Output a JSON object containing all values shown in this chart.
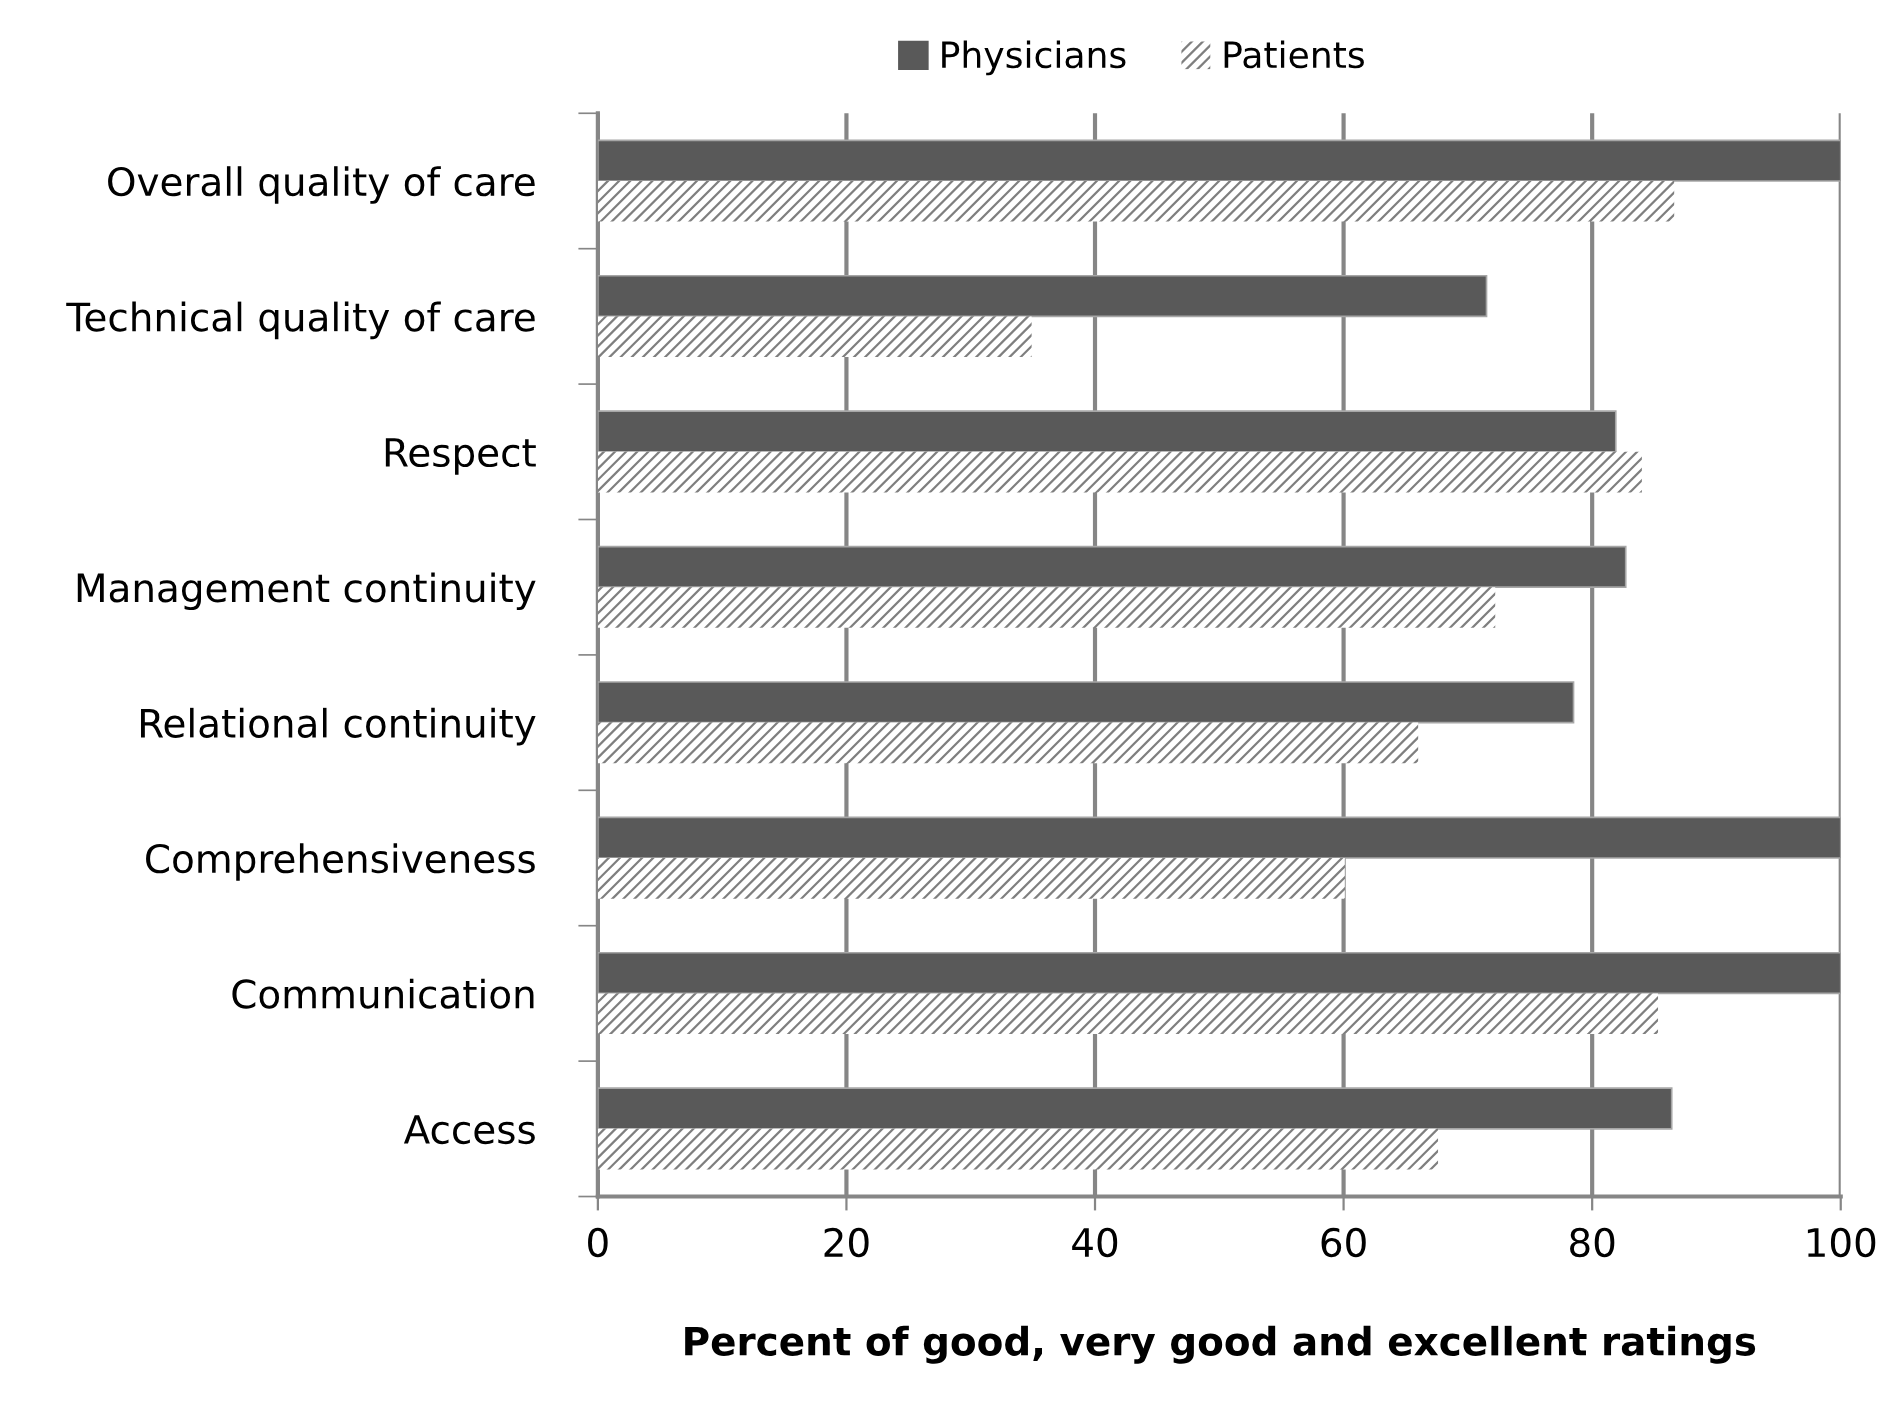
{
  "chart_data": {
    "type": "bar",
    "orientation": "horizontal",
    "xlabel": "Percent of good, very good and excellent ratings",
    "categories": [
      "Overall quality of care",
      "Technical quality of care",
      "Respect",
      "Management continuity",
      "Relational continuity",
      "Comprehensiveness",
      "Communication",
      "Access"
    ],
    "series": [
      {
        "name": "Physicians",
        "color": "#595959",
        "values": [
          100,
          71.5,
          81.9,
          82.7,
          78.5,
          100,
          100,
          86.4
        ]
      },
      {
        "name": "Patients",
        "color": "#7f7f7f",
        "values": [
          86.6,
          34.9,
          84.0,
          72.2,
          66.0,
          60.1,
          85.3,
          67.6
        ]
      }
    ],
    "xlim": [
      0,
      100
    ],
    "xticks": [
      0,
      20,
      40,
      60,
      80,
      100
    ],
    "grid": "x",
    "legend": "top"
  }
}
